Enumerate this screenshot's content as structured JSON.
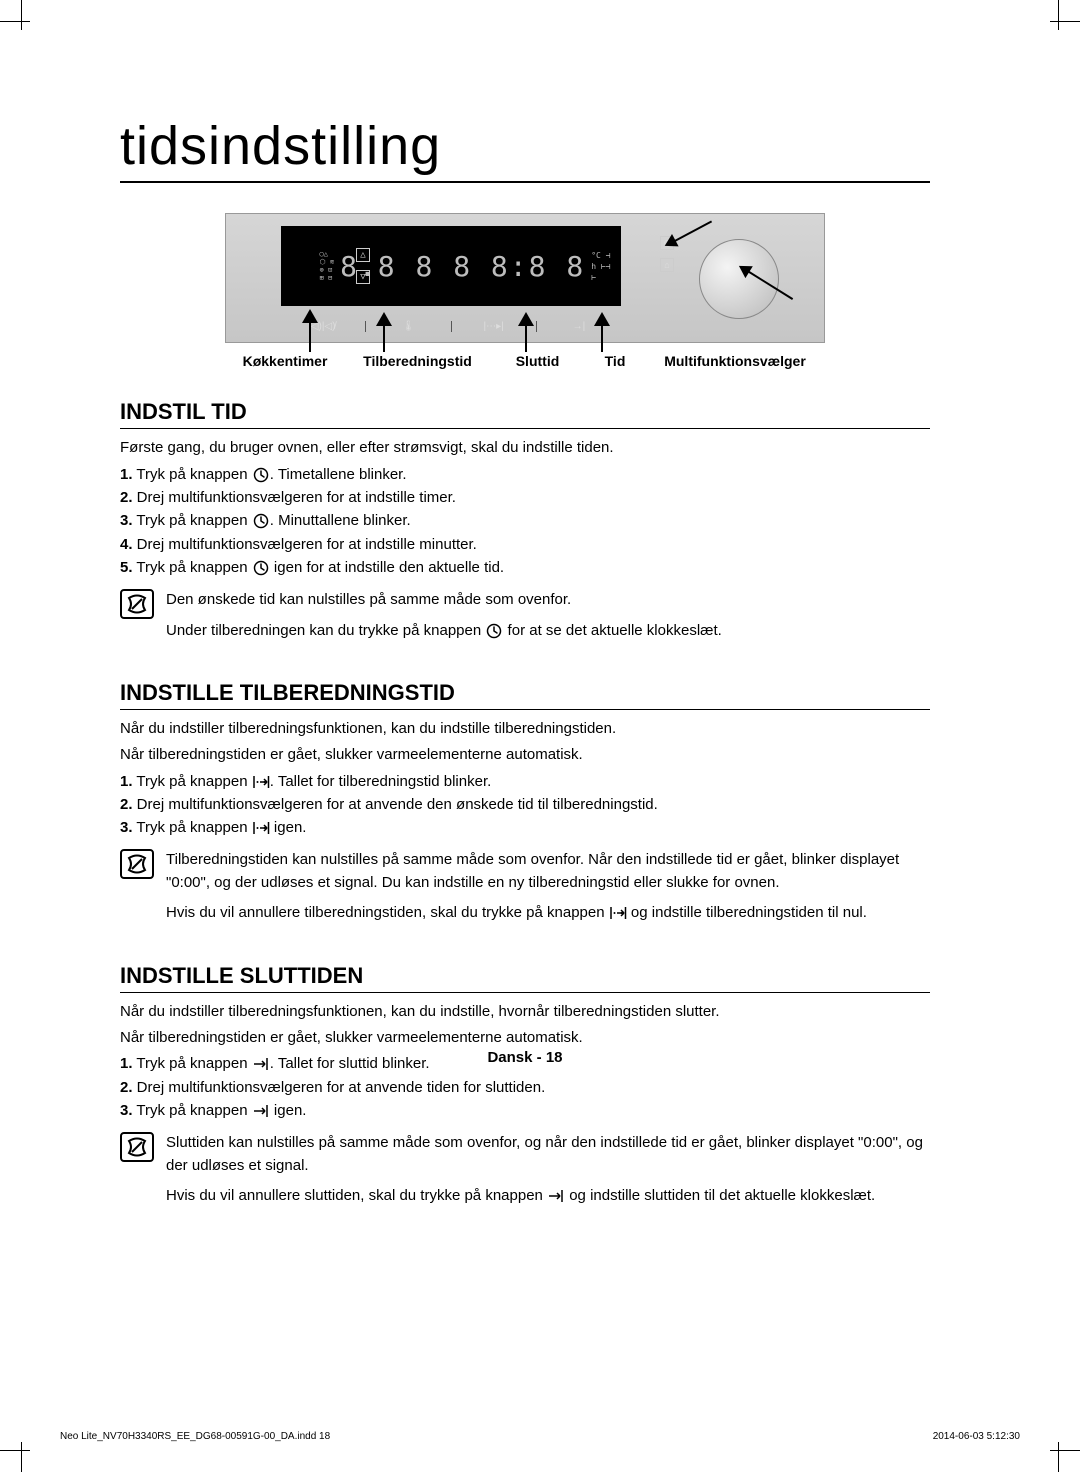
{
  "page_title": "tidsindstilling",
  "control_panel": {
    "display_text": "8.8 8   8 8:8 8",
    "labels": [
      "Køkkentimer",
      "Tilberedningstid",
      "Sluttid",
      "Tid",
      "Multifunktionsvælger"
    ]
  },
  "sections": [
    {
      "heading": "INDSTIL TID",
      "intro": "Første gang, du bruger ovnen, eller efter strømsvigt, skal du indstille tiden.",
      "steps": [
        {
          "n": "1.",
          "before": "Tryk på knappen ",
          "icon": "clock",
          "after": ". Timetallene blinker."
        },
        {
          "n": "2.",
          "before": "Drej multifunktionsvælgeren for at indstille timer.",
          "icon": null,
          "after": ""
        },
        {
          "n": "3.",
          "before": "Tryk på knappen ",
          "icon": "clock",
          "after": ". Minuttallene blinker."
        },
        {
          "n": "4.",
          "before": "Drej multifunktionsvælgeren for at indstille minutter.",
          "icon": null,
          "after": ""
        },
        {
          "n": "5.",
          "before": "Tryk på knappen ",
          "icon": "clock",
          "after": " igen for at indstille den aktuelle tid."
        }
      ],
      "notes": [
        {
          "paras": [
            {
              "segs": [
                {
                  "t": "Den ønskede tid kan nulstilles på samme måde som ovenfor."
                }
              ]
            },
            {
              "segs": [
                {
                  "t": "Under tilberedningen kan du trykke på knappen "
                },
                {
                  "icon": "clock"
                },
                {
                  "t": " for at se det aktuelle klokkeslæt."
                }
              ]
            }
          ]
        }
      ]
    },
    {
      "heading": "INDSTILLE TILBEREDNINGSTID",
      "intro": "Når du indstiller tilberedningsfunktionen, kan du indstille tilberedningstiden.\nNår tilberedningstiden er gået, slukker varmeelementerne automatisk.",
      "steps": [
        {
          "n": "1.",
          "before": "Tryk på knappen ",
          "icon": "cooktime",
          "after": ". Tallet for tilberedningstid blinker."
        },
        {
          "n": "2.",
          "before": "Drej multifunktionsvælgeren for at anvende den ønskede tid til tilberedningstid.",
          "icon": null,
          "after": ""
        },
        {
          "n": "3.",
          "before": "Tryk på knappen ",
          "icon": "cooktime",
          "after": " igen."
        }
      ],
      "notes": [
        {
          "paras": [
            {
              "segs": [
                {
                  "t": "Tilberedningstiden kan nulstilles på samme måde som ovenfor. Når den indstillede tid er gået, blinker displayet \"0:00\", og der udløses et signal. Du kan indstille en ny tilberedningstid eller slukke for ovnen."
                }
              ]
            },
            {
              "segs": [
                {
                  "t": "Hvis du vil annullere tilberedningstiden, skal du trykke på knappen "
                },
                {
                  "icon": "cooktime"
                },
                {
                  "t": " og indstille tilberedningstiden til nul."
                }
              ]
            }
          ]
        }
      ]
    },
    {
      "heading": "INDSTILLE SLUTTIDEN",
      "intro": "Når du indstiller tilberedningsfunktionen, kan du indstille, hvornår tilberedningstiden slutter.\nNår tilberedningstiden er gået, slukker varmeelementerne automatisk.",
      "steps": [
        {
          "n": "1.",
          "before": "Tryk på knappen ",
          "icon": "endtime",
          "after": ". Tallet for sluttid blinker."
        },
        {
          "n": "2.",
          "before": "Drej multifunktionsvælgeren for at anvende tiden for sluttiden.",
          "icon": null,
          "after": ""
        },
        {
          "n": "3.",
          "before": "Tryk på knappen ",
          "icon": "endtime",
          "after": " igen."
        }
      ],
      "notes": [
        {
          "paras": [
            {
              "segs": [
                {
                  "t": "Sluttiden kan nulstilles på samme måde som ovenfor, og når den indstillede tid er gået, blinker displayet \"0:00\", og der udløses et signal."
                }
              ]
            },
            {
              "segs": [
                {
                  "t": "Hvis du vil annullere sluttiden, skal du trykke på knappen "
                },
                {
                  "icon": "endtime"
                },
                {
                  "t": " og indstille sluttiden til det aktuelle klokkeslæt."
                }
              ]
            }
          ]
        }
      ]
    }
  ],
  "footer": {
    "lang": "Dansk",
    "sep": " - ",
    "page": "18"
  },
  "print_footer": {
    "left": "Neo Lite_NV70H3340RS_EE_DG68-00591G-00_DA.indd   18",
    "right_date": "2014-06-03",
    "right_time": "   5:12:30"
  },
  "icons": {
    "clock": "clock-icon",
    "cooktime": "cooktime-icon",
    "endtime": "endtime-icon",
    "note": "note-icon"
  },
  "colors": {
    "text": "#000000",
    "background": "#ffffff",
    "panel_bg_top": "#d6d6d6",
    "panel_bg_bottom": "#c6c6c6",
    "display_bg": "#000000",
    "display_fg": "#bdbdbd"
  }
}
